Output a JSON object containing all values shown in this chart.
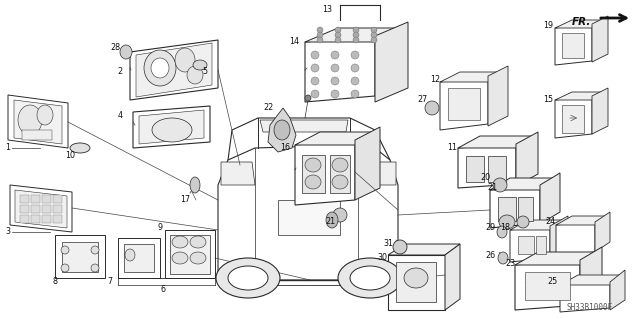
{
  "background_color": "#ffffff",
  "fig_width": 6.4,
  "fig_height": 3.19,
  "dpi": 100,
  "watermark": "SH33B1000F",
  "line_color": "#2a2a2a",
  "text_color": "#111111",
  "part_fs": 5.8
}
